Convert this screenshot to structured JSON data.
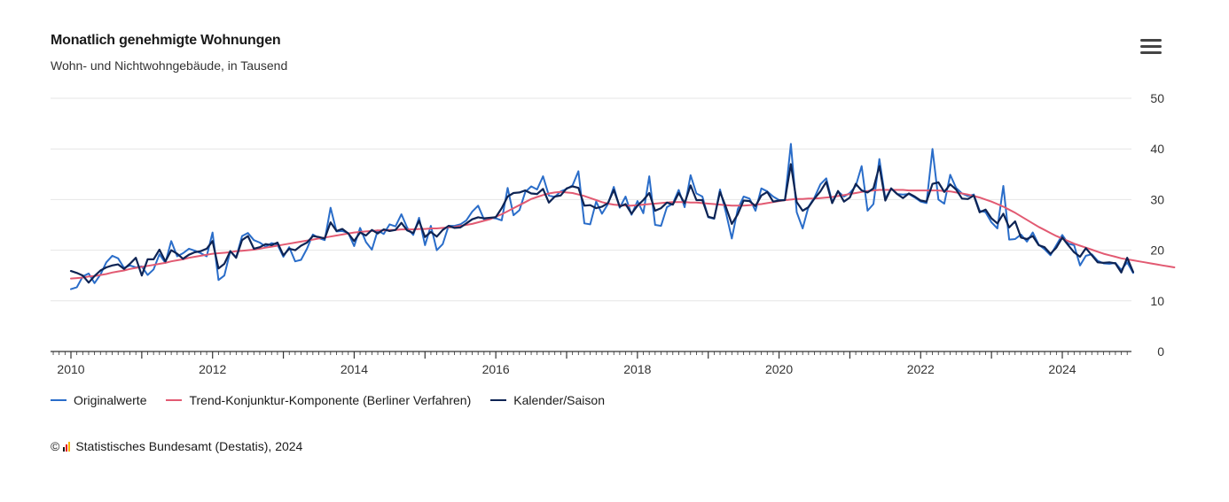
{
  "chart_data": {
    "type": "line",
    "title": "Monatlich genehmigte Wohnungen",
    "subtitle": "Wohn- und Nichtwohngebäude, in Tausend",
    "x_start": "2010-01",
    "x_end": "2024-09",
    "ylim": [
      0,
      50
    ],
    "x_ticks": [
      2010,
      2012,
      2014,
      2016,
      2018,
      2020,
      2022,
      2024
    ],
    "y_ticks": [
      0,
      10,
      20,
      30,
      40,
      50
    ],
    "y_axis_side": "right",
    "grid": "horizontal",
    "legend_position": "bottom-left",
    "series": [
      {
        "name": "Originalwerte",
        "color": "#2a6dc9",
        "values": [
          12.3,
          12.7,
          14.8,
          15.4,
          13.5,
          15.2,
          17.6,
          18.9,
          18.4,
          16.5,
          17.0,
          16.6,
          16.8,
          15.1,
          16.2,
          19.2,
          17.5,
          21.8,
          18.8,
          19.4,
          20.3,
          19.9,
          19.4,
          18.8,
          23.5,
          14.1,
          15.0,
          19.8,
          18.6,
          22.8,
          23.4,
          22.0,
          21.5,
          20.7,
          21.4,
          21.1,
          18.7,
          20.6,
          17.8,
          18.1,
          20.3,
          23.1,
          22.4,
          22.0,
          28.4,
          23.7,
          23.8,
          23.4,
          20.8,
          24.4,
          21.6,
          20.1,
          23.9,
          23.2,
          25.1,
          24.7,
          27.1,
          24.4,
          23.0,
          26.4,
          21.0,
          24.8,
          20.0,
          21.2,
          24.8,
          24.8,
          25.1,
          25.9,
          27.6,
          28.8,
          26.1,
          26.4,
          26.3,
          25.9,
          32.3,
          26.9,
          27.9,
          31.5,
          32.6,
          32.0,
          34.6,
          30.8,
          30.5,
          31.6,
          32.1,
          32.8,
          35.6,
          25.3,
          25.1,
          29.6,
          27.2,
          29.1,
          32.5,
          28.4,
          30.6,
          27.0,
          29.7,
          27.3,
          34.6,
          25.0,
          24.8,
          28.5,
          29.2,
          31.9,
          28.5,
          34.8,
          31.2,
          30.6,
          26.5,
          26.2,
          32.0,
          27.4,
          22.3,
          28.1,
          30.6,
          30.2,
          27.8,
          32.2,
          31.6,
          30.6,
          29.9,
          29.9,
          41.0,
          27.5,
          24.3,
          28.6,
          30.4,
          33.0,
          34.2,
          29.5,
          31.6,
          30.6,
          31.3,
          32.7,
          36.6,
          27.8,
          29.1,
          38.0,
          30.2,
          32.2,
          31.1,
          31.0,
          31.1,
          30.4,
          29.6,
          29.3,
          40.0,
          30.0,
          29.2,
          34.9,
          32.3,
          31.2,
          30.7,
          31.0,
          27.8,
          27.5,
          25.5,
          24.3,
          32.7,
          22.1,
          22.2,
          23.1,
          21.7,
          23.5,
          21.1,
          20.2,
          19.0,
          21.0,
          23.0,
          21.3,
          21.0,
          17.0,
          18.9,
          19.2,
          17.9,
          17.4,
          17.3,
          17.5,
          16.1,
          17.6,
          15.5
        ]
      },
      {
        "name": "Trend-Konjunktur-Komponente (Berliner Verfahren)",
        "color": "#e25a72",
        "values": [
          14.4,
          14.5,
          14.6,
          14.8,
          14.9,
          15.1,
          15.3,
          15.6,
          15.8,
          16.0,
          16.3,
          16.5,
          16.7,
          16.9,
          17.1,
          17.3,
          17.5,
          17.8,
          18.0,
          18.2,
          18.5,
          18.7,
          18.9,
          19.1,
          19.3,
          19.4,
          19.5,
          19.6,
          19.8,
          19.9,
          20.0,
          20.1,
          20.3,
          20.5,
          20.7,
          20.9,
          21.1,
          21.3,
          21.5,
          21.7,
          21.9,
          22.1,
          22.3,
          22.5,
          22.7,
          22.9,
          23.1,
          23.3,
          23.5,
          23.6,
          23.7,
          23.8,
          23.9,
          23.9,
          24.0,
          24.0,
          24.1,
          24.1,
          24.1,
          24.2,
          24.2,
          24.3,
          24.3,
          24.4,
          24.5,
          24.6,
          24.8,
          25.0,
          25.2,
          25.5,
          25.8,
          26.1,
          26.6,
          27.1,
          27.7,
          28.3,
          28.9,
          29.5,
          30.1,
          30.5,
          30.9,
          31.2,
          31.4,
          31.5,
          31.4,
          31.3,
          31.0,
          30.7,
          30.3,
          29.9,
          29.5,
          29.2,
          29.0,
          28.9,
          28.8,
          28.8,
          28.9,
          29.0,
          29.1,
          29.2,
          29.3,
          29.4,
          29.5,
          29.5,
          29.5,
          29.4,
          29.4,
          29.3,
          29.2,
          29.1,
          29.0,
          28.9,
          28.8,
          28.8,
          28.8,
          28.9,
          29.0,
          29.1,
          29.3,
          29.5,
          29.7,
          29.9,
          30.0,
          30.1,
          30.1,
          30.2,
          30.2,
          30.3,
          30.4,
          30.5,
          30.7,
          30.9,
          31.1,
          31.3,
          31.5,
          31.7,
          31.8,
          31.9,
          31.9,
          31.9,
          31.9,
          31.9,
          31.8,
          31.8,
          31.8,
          31.8,
          31.8,
          31.8,
          31.7,
          31.6,
          31.4,
          31.2,
          31.0,
          30.7,
          30.4,
          30.0,
          29.6,
          29.1,
          28.6,
          28.0,
          27.4,
          26.7,
          26.0,
          25.3,
          24.6,
          24.0,
          23.4,
          22.8,
          22.3,
          21.8,
          21.3,
          20.9,
          20.5,
          20.1,
          19.7,
          19.3,
          19.0,
          18.7,
          18.4,
          18.2,
          18.0,
          17.8,
          17.6,
          17.4,
          17.2,
          17.0,
          16.8,
          16.6
        ]
      },
      {
        "name": "Kalender/Saison",
        "color": "#0e2454",
        "values": [
          15.9,
          15.5,
          15.0,
          13.6,
          14.9,
          16.0,
          16.6,
          17.0,
          17.2,
          16.3,
          17.3,
          18.5,
          15.0,
          18.2,
          18.2,
          20.1,
          17.8,
          20.0,
          19.3,
          18.3,
          19.1,
          19.6,
          19.8,
          20.3,
          21.8,
          16.4,
          17.3,
          19.8,
          18.5,
          22.0,
          22.8,
          20.3,
          20.6,
          21.2,
          21.0,
          21.5,
          19.0,
          20.3,
          20.0,
          20.9,
          21.5,
          22.8,
          22.6,
          22.3,
          25.5,
          23.8,
          24.2,
          23.3,
          21.8,
          23.5,
          22.9,
          24.0,
          23.3,
          24.1,
          23.8,
          24.0,
          25.4,
          23.9,
          23.4,
          25.8,
          22.6,
          23.6,
          22.7,
          24.0,
          24.8,
          24.4,
          24.5,
          25.3,
          26.1,
          26.5,
          26.3,
          26.4,
          26.5,
          28.3,
          30.6,
          31.3,
          31.4,
          31.8,
          31.2,
          31.1,
          32.1,
          29.4,
          30.6,
          30.8,
          32.2,
          32.6,
          32.3,
          28.8,
          28.9,
          28.3,
          28.6,
          29.3,
          31.9,
          28.6,
          29.1,
          27.2,
          28.8,
          29.9,
          31.3,
          27.8,
          28.3,
          29.4,
          29.0,
          31.3,
          29.3,
          32.8,
          29.9,
          29.9,
          26.6,
          26.3,
          31.5,
          28.5,
          25.2,
          27.1,
          29.8,
          29.7,
          28.7,
          30.8,
          31.5,
          29.6,
          29.8,
          29.9,
          37.0,
          29.5,
          27.8,
          28.5,
          30.2,
          31.6,
          33.5,
          29.3,
          31.7,
          29.6,
          30.4,
          33.1,
          31.8,
          31.4,
          32.2,
          36.6,
          29.8,
          32.2,
          31.1,
          30.3,
          31.2,
          30.6,
          29.8,
          29.6,
          33.1,
          33.4,
          31.5,
          33.0,
          32.0,
          30.2,
          30.1,
          30.8,
          27.5,
          28.0,
          26.3,
          25.3,
          27.2,
          24.5,
          25.7,
          22.5,
          22.2,
          22.8,
          21.0,
          20.6,
          19.3,
          20.5,
          22.5,
          21.0,
          19.6,
          18.7,
          20.4,
          19.0,
          17.6,
          17.5,
          17.6,
          17.4,
          15.6,
          18.5,
          15.7
        ]
      }
    ]
  },
  "credits": {
    "copyright_symbol": "©",
    "text": "Statistisches Bundesamt (Destatis), 2024"
  },
  "menu": {
    "icon": "hamburger-menu-icon"
  }
}
